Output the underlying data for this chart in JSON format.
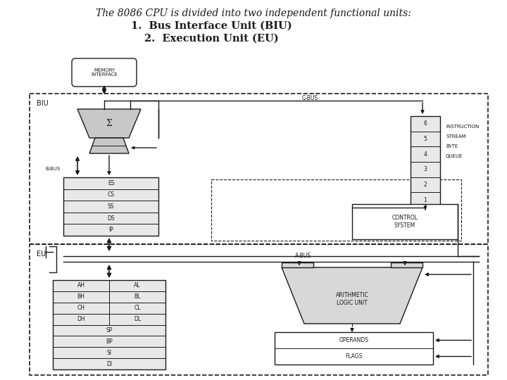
{
  "title_line1": "The 8086 CPU is divided into two independent functional units:",
  "title_line2": "1.  Bus Interface Unit (BIU)",
  "title_line3": "2.  Execution Unit (EU)",
  "bg_color": "#ffffff",
  "lc": "#1a1a1a",
  "segment_regs": [
    "ES",
    "CS",
    "SS",
    "DS",
    "IP"
  ],
  "gen_regs_left": [
    "AH",
    "BH",
    "CH",
    "DH"
  ],
  "gen_regs_right": [
    "AL",
    "BL",
    "CL",
    "DL"
  ],
  "gen_regs_full": [
    "SP",
    "BP",
    "SI",
    "DI"
  ],
  "byte_queue": [
    "6",
    "5",
    "4",
    "3",
    "2",
    "1"
  ],
  "isbq_label": [
    "INSTRUCTION",
    "STREAM",
    "BYTE",
    "QUEUE"
  ]
}
